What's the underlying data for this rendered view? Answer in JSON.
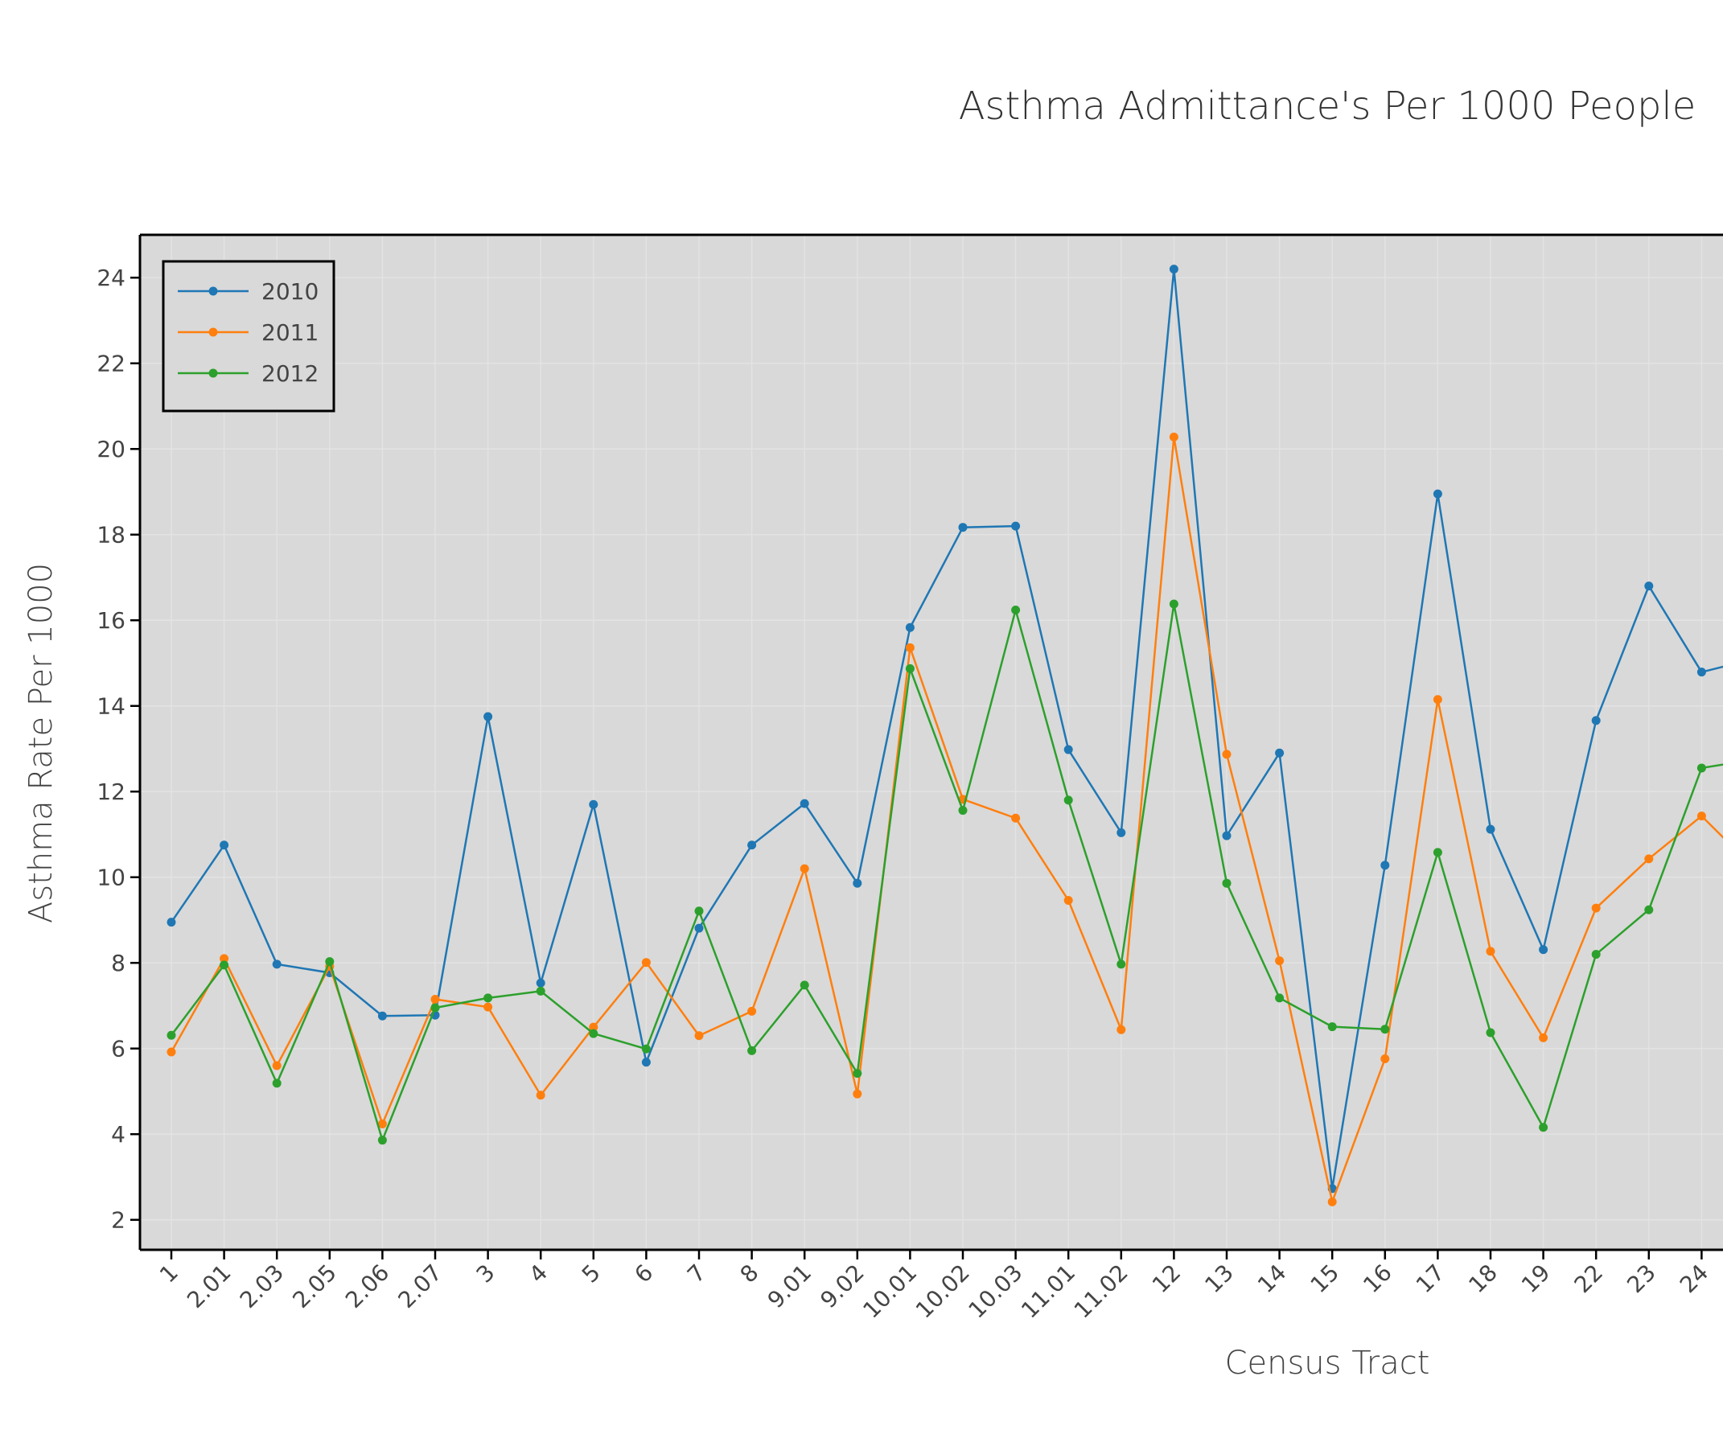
{
  "chart_data": {
    "type": "line",
    "title": "Asthma Admittance's Per 1000 People",
    "xlabel": "Census Tract",
    "ylabel": "Asthma Rate Per 1000",
    "ylim": [
      1.3,
      25
    ],
    "yticks": [
      2,
      4,
      6,
      8,
      10,
      12,
      14,
      16,
      18,
      20,
      22,
      24
    ],
    "grid": true,
    "legend_position": "top-left",
    "categories": [
      "1",
      "2.01",
      "2.03",
      "2.05",
      "2.06",
      "2.07",
      "3",
      "4",
      "5",
      "6",
      "7",
      "8",
      "9.01",
      "9.02",
      "10.01",
      "10.02",
      "10.03",
      "11.01",
      "11.02",
      "12",
      "13",
      "14",
      "15",
      "16",
      "17",
      "18",
      "19",
      "22",
      "23",
      "24"
    ],
    "series": [
      {
        "name": "2010",
        "color": "#1f77b4",
        "values": [
          8.95,
          10.75,
          7.97,
          7.77,
          6.76,
          6.78,
          13.75,
          7.53,
          11.7,
          5.68,
          8.81,
          10.75,
          11.72,
          9.86,
          15.83,
          18.17,
          18.2,
          12.98,
          11.04,
          24.2,
          10.97,
          12.9,
          2.73,
          10.28,
          18.95,
          11.12,
          8.31,
          13.66,
          16.8,
          14.79
        ],
        "continuation": 15.1
      },
      {
        "name": "2011",
        "color": "#ff7f0e",
        "values": [
          5.92,
          8.1,
          5.6,
          7.92,
          4.24,
          7.15,
          6.97,
          4.91,
          6.5,
          8.01,
          6.3,
          6.87,
          10.2,
          4.94,
          15.36,
          11.82,
          11.38,
          9.46,
          6.44,
          20.28,
          12.87,
          8.05,
          2.42,
          5.76,
          14.15,
          8.27,
          6.25,
          9.28,
          10.43,
          11.43
        ],
        "continuation": 10.2
      },
      {
        "name": "2012",
        "color": "#2ca02c",
        "values": [
          6.31,
          7.95,
          5.19,
          8.03,
          3.86,
          6.95,
          7.18,
          7.34,
          6.35,
          5.99,
          9.21,
          5.95,
          7.48,
          5.42,
          14.87,
          11.56,
          16.24,
          11.8,
          7.97,
          16.38,
          9.86,
          7.18,
          6.51,
          6.45,
          10.58,
          6.37,
          4.16,
          8.2,
          9.24,
          12.55
        ],
        "continuation": 12.75
      }
    ]
  }
}
